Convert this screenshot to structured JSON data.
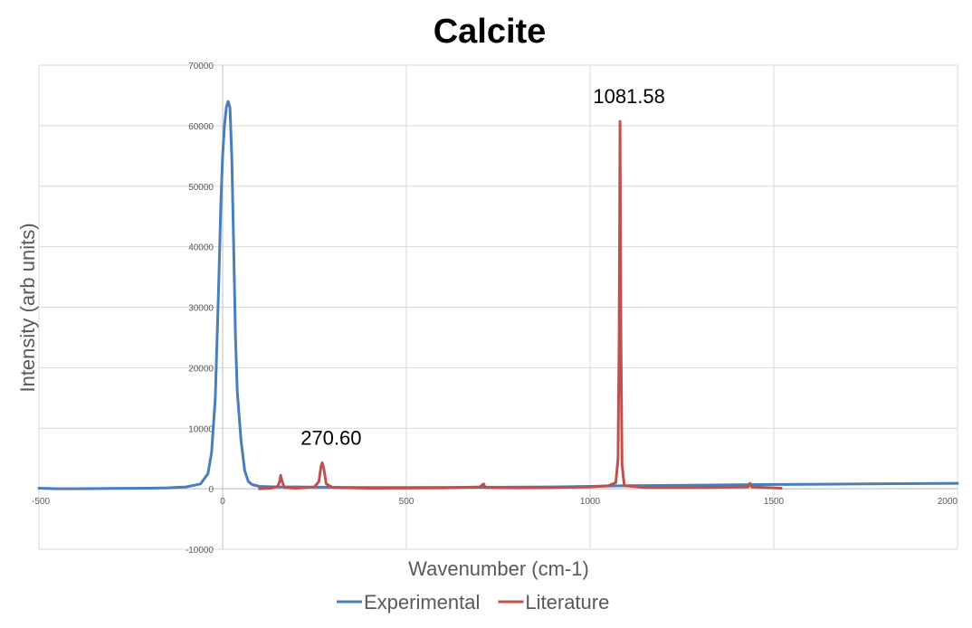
{
  "chart_data": {
    "type": "line",
    "title": "Calcite",
    "xlabel": "Wavenumber (cm-1)",
    "ylabel": "Intensity (arb units)",
    "xlim": [
      -500,
      2000
    ],
    "ylim": [
      -10000,
      70000
    ],
    "x_ticks": [
      -500,
      0,
      500,
      1000,
      1500,
      2000
    ],
    "y_ticks": [
      -10000,
      0,
      10000,
      20000,
      30000,
      40000,
      50000,
      60000,
      70000
    ],
    "grid": true,
    "legend_position": "bottom",
    "series": [
      {
        "name": "Experimental",
        "color": "#4a7ebb",
        "points": [
          [
            -500,
            100
          ],
          [
            -450,
            0
          ],
          [
            -400,
            0
          ],
          [
            -300,
            50
          ],
          [
            -200,
            100
          ],
          [
            -150,
            150
          ],
          [
            -100,
            300
          ],
          [
            -60,
            800
          ],
          [
            -40,
            2500
          ],
          [
            -30,
            6000
          ],
          [
            -20,
            15000
          ],
          [
            -15,
            25000
          ],
          [
            -10,
            35000
          ],
          [
            -5,
            47000
          ],
          [
            0,
            55000
          ],
          [
            5,
            60000
          ],
          [
            10,
            63000
          ],
          [
            15,
            64000
          ],
          [
            20,
            63000
          ],
          [
            25,
            55000
          ],
          [
            30,
            40000
          ],
          [
            35,
            25000
          ],
          [
            40,
            16000
          ],
          [
            50,
            8000
          ],
          [
            60,
            3000
          ],
          [
            70,
            1200
          ],
          [
            80,
            700
          ],
          [
            100,
            400
          ],
          [
            150,
            300
          ],
          [
            200,
            300
          ],
          [
            300,
            250
          ],
          [
            400,
            200
          ],
          [
            500,
            200
          ],
          [
            700,
            250
          ],
          [
            900,
            300
          ],
          [
            1000,
            400
          ],
          [
            1100,
            500
          ],
          [
            1300,
            600
          ],
          [
            1500,
            700
          ],
          [
            1750,
            800
          ],
          [
            2000,
            900
          ]
        ]
      },
      {
        "name": "Literature",
        "color": "#c0504d",
        "points": [
          [
            100,
            0
          ],
          [
            130,
            100
          ],
          [
            150,
            400
          ],
          [
            155,
            1200
          ],
          [
            158,
            2200
          ],
          [
            162,
            1200
          ],
          [
            168,
            200
          ],
          [
            200,
            100
          ],
          [
            250,
            300
          ],
          [
            262,
            1200
          ],
          [
            268,
            3800
          ],
          [
            271,
            4300
          ],
          [
            275,
            3500
          ],
          [
            282,
            800
          ],
          [
            300,
            200
          ],
          [
            400,
            100
          ],
          [
            600,
            150
          ],
          [
            700,
            300
          ],
          [
            710,
            800
          ],
          [
            715,
            200
          ],
          [
            800,
            150
          ],
          [
            900,
            200
          ],
          [
            1000,
            300
          ],
          [
            1050,
            500
          ],
          [
            1070,
            1000
          ],
          [
            1076,
            5000
          ],
          [
            1079,
            25000
          ],
          [
            1081.58,
            60700
          ],
          [
            1084,
            25000
          ],
          [
            1087,
            4000
          ],
          [
            1093,
            500
          ],
          [
            1150,
            200
          ],
          [
            1300,
            200
          ],
          [
            1430,
            300
          ],
          [
            1435,
            900
          ],
          [
            1440,
            300
          ],
          [
            1500,
            150
          ],
          [
            1520,
            100
          ]
        ]
      }
    ],
    "annotations": [
      {
        "x": 270.6,
        "label": "270.60"
      },
      {
        "x": 1081.58,
        "label": "1081.58"
      }
    ]
  }
}
